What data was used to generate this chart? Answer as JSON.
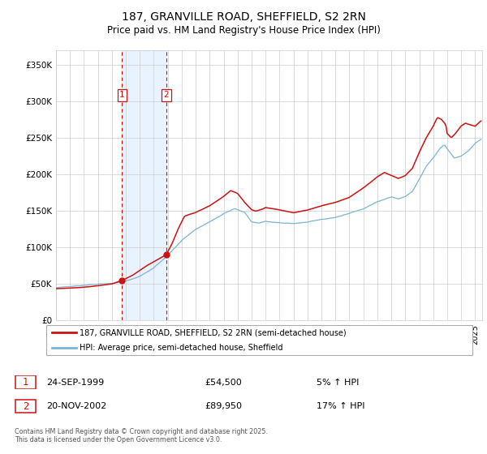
{
  "title": "187, GRANVILLE ROAD, SHEFFIELD, S2 2RN",
  "subtitle": "Price paid vs. HM Land Registry's House Price Index (HPI)",
  "legend_line1": "187, GRANVILLE ROAD, SHEFFIELD, S2 2RN (semi-detached house)",
  "legend_line2": "HPI: Average price, semi-detached house, Sheffield",
  "table_row1": [
    "1",
    "24-SEP-1999",
    "£54,500",
    "5% ↑ HPI"
  ],
  "table_row2": [
    "2",
    "20-NOV-2002",
    "£89,950",
    "17% ↑ HPI"
  ],
  "footnote": "Contains HM Land Registry data © Crown copyright and database right 2025.\nThis data is licensed under the Open Government Licence v3.0.",
  "hpi_color": "#7ab4d4",
  "price_color": "#cc1111",
  "dot_color": "#cc1111",
  "vline_color": "#cc1111",
  "shade_color": "#ddeeff",
  "sale1_year": 1999.73,
  "sale1_price": 54500,
  "sale2_year": 2002.89,
  "sale2_price": 89950,
  "x_start_year": 1995.0,
  "x_end_year": 2025.5,
  "y_max": 370000,
  "y_ticks": [
    0,
    50000,
    100000,
    150000,
    200000,
    250000,
    300000,
    350000
  ],
  "y_tick_labels": [
    "£0",
    "£50K",
    "£100K",
    "£150K",
    "£200K",
    "£250K",
    "£300K",
    "£350K"
  ],
  "background_color": "#ffffff",
  "grid_color": "#cccccc"
}
